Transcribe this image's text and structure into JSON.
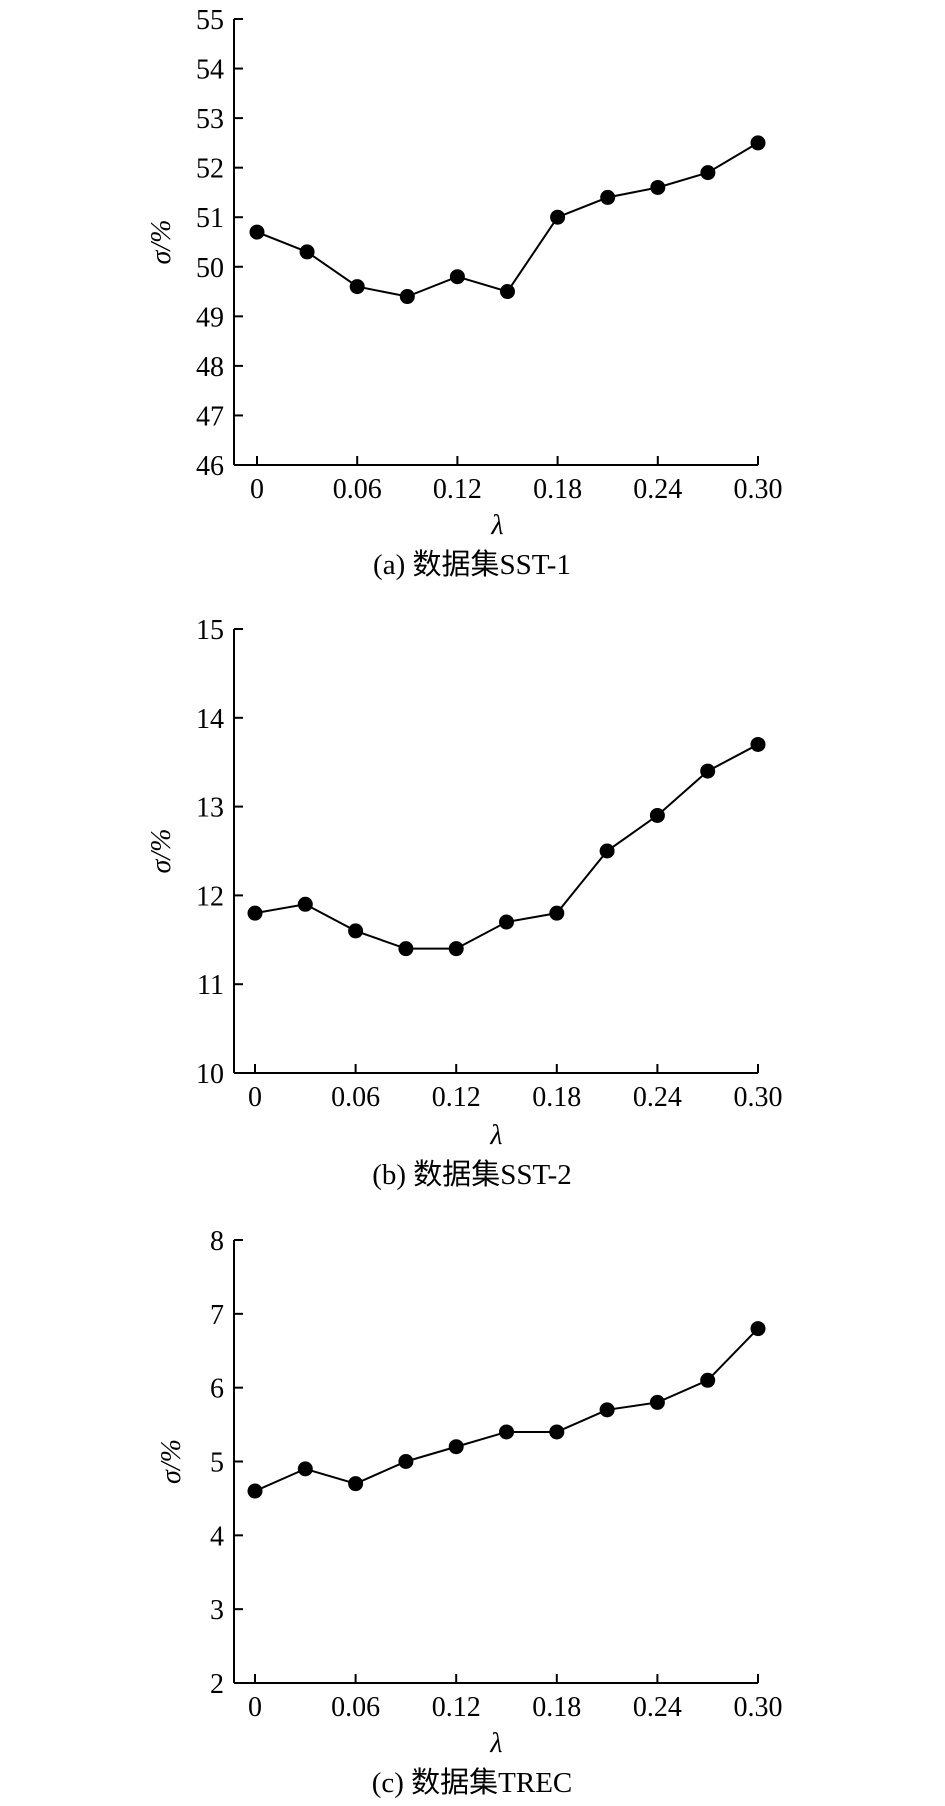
{
  "chart_data": [
    {
      "type": "line",
      "caption": "(a) 数据集SST-1",
      "xlabel": "λ",
      "ylabel": "σ/%",
      "x": [
        0,
        0.03,
        0.06,
        0.09,
        0.12,
        0.15,
        0.18,
        0.21,
        0.24,
        0.27,
        0.3
      ],
      "values": [
        50.7,
        50.3,
        49.6,
        49.4,
        49.8,
        49.5,
        51.0,
        51.4,
        51.6,
        51.9,
        52.5
      ],
      "xlim": [
        0,
        0.3
      ],
      "ylim": [
        46,
        55
      ],
      "xticks": [
        0,
        0.06,
        0.12,
        0.18,
        0.24,
        0.3
      ],
      "xtick_labels": [
        "0",
        "0.06",
        "0.12",
        "0.18",
        "0.24",
        "0.30"
      ],
      "yticks": [
        46,
        47,
        48,
        49,
        50,
        51,
        52,
        53,
        54,
        55
      ],
      "ytick_labels": [
        "46",
        "47",
        "48",
        "49",
        "50",
        "51",
        "52",
        "53",
        "54",
        "55"
      ],
      "grid": false
    },
    {
      "type": "line",
      "caption": "(b) 数据集SST-2",
      "xlabel": "λ",
      "ylabel": "σ/%",
      "x": [
        0,
        0.03,
        0.06,
        0.09,
        0.12,
        0.15,
        0.18,
        0.21,
        0.24,
        0.27,
        0.3
      ],
      "values": [
        11.8,
        11.9,
        11.6,
        11.4,
        11.4,
        11.7,
        11.8,
        12.5,
        12.9,
        13.4,
        13.7
      ],
      "xlim": [
        0,
        0.3
      ],
      "ylim": [
        10,
        15
      ],
      "xticks": [
        0,
        0.06,
        0.12,
        0.18,
        0.24,
        0.3
      ],
      "xtick_labels": [
        "0",
        "0.06",
        "0.12",
        "0.18",
        "0.24",
        "0.30"
      ],
      "yticks": [
        10,
        11,
        12,
        13,
        14,
        15
      ],
      "ytick_labels": [
        "10",
        "11",
        "12",
        "13",
        "14",
        "15"
      ],
      "grid": false
    },
    {
      "type": "line",
      "caption": "(c) 数据集TREC",
      "xlabel": "λ",
      "ylabel": "σ/%",
      "x": [
        0,
        0.03,
        0.06,
        0.09,
        0.12,
        0.15,
        0.18,
        0.21,
        0.24,
        0.27,
        0.3
      ],
      "values": [
        4.6,
        4.9,
        4.7,
        5.0,
        5.2,
        5.4,
        5.4,
        5.7,
        5.8,
        6.1,
        6.8
      ],
      "xlim": [
        0,
        0.3
      ],
      "ylim": [
        2,
        8
      ],
      "xticks": [
        0,
        0.06,
        0.12,
        0.18,
        0.24,
        0.3
      ],
      "xtick_labels": [
        "0",
        "0.06",
        "0.12",
        "0.18",
        "0.24",
        "0.30"
      ],
      "yticks": [
        2,
        3,
        4,
        5,
        6,
        7,
        8
      ],
      "ytick_labels": [
        "2",
        "3",
        "4",
        "5",
        "6",
        "7",
        "8"
      ],
      "grid": false
    }
  ]
}
